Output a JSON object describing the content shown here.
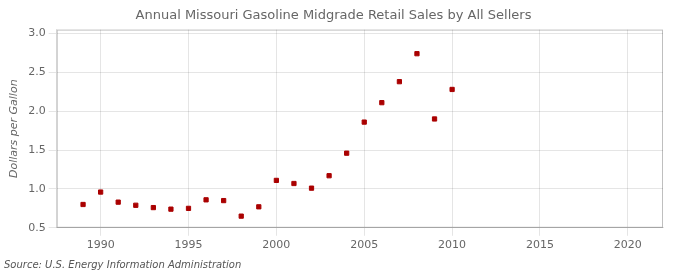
{
  "chart_data": {
    "type": "scatter",
    "title": "Annual Missouri Gasoline Midgrade Retail Sales by All Sellers",
    "ylabel": "Dollars per Gallon",
    "annotations": [
      "Source: U.S. Energy Information Administration"
    ],
    "x": [
      1989,
      1990,
      1991,
      1992,
      1993,
      1994,
      1995,
      1996,
      1997,
      1998,
      1999,
      2000,
      2001,
      2002,
      2003,
      2004,
      2005,
      2006,
      2007,
      2008,
      2009,
      2010
    ],
    "values": [
      0.8,
      0.96,
      0.83,
      0.79,
      0.76,
      0.74,
      0.75,
      0.86,
      0.85,
      0.65,
      0.77,
      1.11,
      1.07,
      1.01,
      1.17,
      1.46,
      1.86,
      2.11,
      2.38,
      2.74,
      1.9,
      2.28
    ],
    "color": "#aa0000",
    "marker": "square",
    "xlim": [
      1987.5,
      2022
    ],
    "ylim": [
      0.5,
      3.05
    ],
    "xticks": [
      1990,
      1995,
      2000,
      2005,
      2010,
      2015,
      2020
    ],
    "yticks": [
      0.5,
      {
        "value": 1.0,
        "label": "1.0"
      },
      1.5,
      {
        "value": 2.0,
        "label": "2.0"
      },
      2.5,
      {
        "value": 3.0,
        "label": "3.0"
      }
    ],
    "grid": true
  }
}
